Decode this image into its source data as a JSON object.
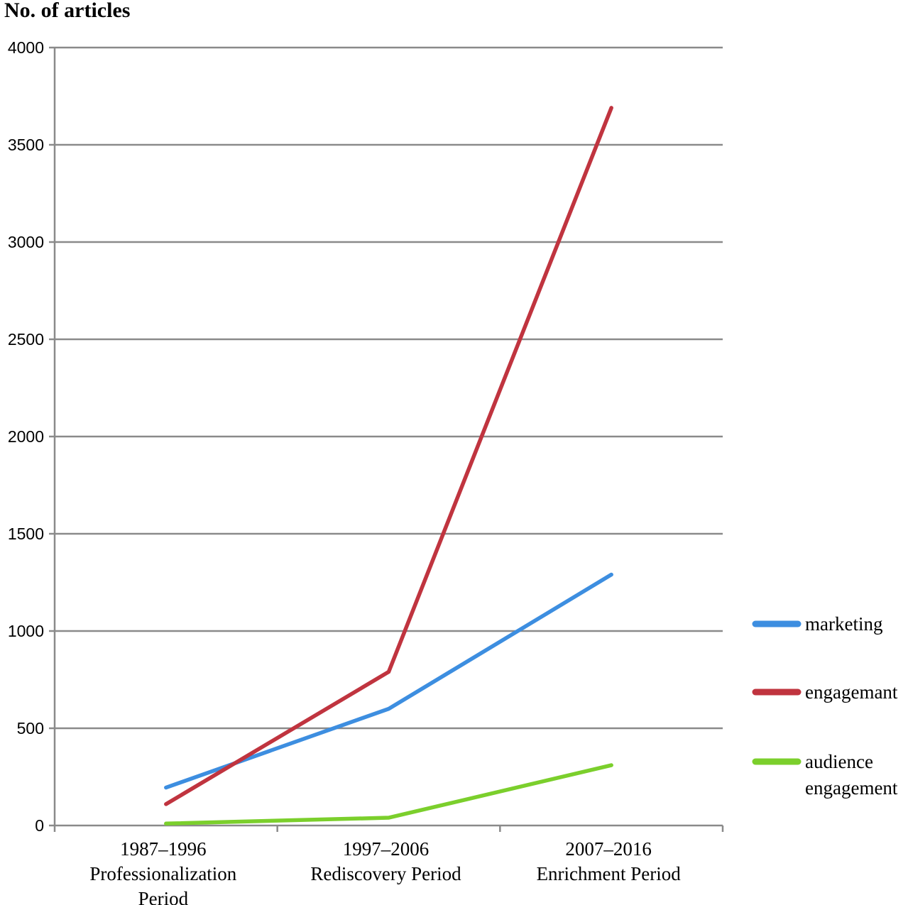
{
  "chart_data": {
    "type": "line",
    "ylabel": "No. of articles",
    "ylim": [
      0,
      4000
    ],
    "yticks": [
      "0",
      "500",
      "1000",
      "1500",
      "2000",
      "2500",
      "3000",
      "3500",
      "4000"
    ],
    "categories": [
      [
        "1987–1996",
        "Professionalization",
        "Period"
      ],
      [
        "1997–2006",
        "Rediscovery Period"
      ],
      [
        "2007–2016",
        "Enrichment Period"
      ]
    ],
    "grid": true,
    "legend_position": "right",
    "series": [
      {
        "name": [
          "marketing"
        ],
        "color": "#3d8ee0",
        "values": [
          195,
          600,
          1290
        ]
      },
      {
        "name": [
          "engagemant"
        ],
        "color": "#c0343f",
        "values": [
          110,
          790,
          3690
        ]
      },
      {
        "name": [
          "audience",
          "engagement"
        ],
        "color": "#7bcf2c",
        "values": [
          10,
          40,
          310
        ]
      }
    ]
  }
}
